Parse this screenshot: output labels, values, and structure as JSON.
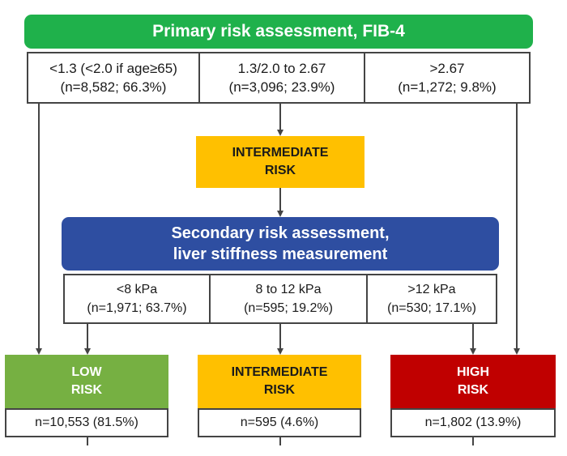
{
  "primary": {
    "title": "Primary risk assessment, FIB-4",
    "cells": [
      {
        "range": "<1.3 (<2.0 if age≥65)",
        "count": "(n=8,582; 66.3%)"
      },
      {
        "range": "1.3/2.0 to 2.67",
        "count": "(n=3,096; 23.9%)"
      },
      {
        "range": ">2.67",
        "count": "(n=1,272; 9.8%)"
      }
    ]
  },
  "intermediate_mid": {
    "line1": "INTERMEDIATE",
    "line2": "RISK"
  },
  "secondary": {
    "line1": "Secondary risk assessment,",
    "line2": "liver stiffness measurement",
    "cells": [
      {
        "range": "<8 kPa",
        "count": "(n=1,971; 63.7%)"
      },
      {
        "range": "8 to 12 kPa",
        "count": "(n=595; 19.2%)"
      },
      {
        "range": ">12 kPa",
        "count": "(n=530; 17.1%)"
      }
    ]
  },
  "results": {
    "low": {
      "line1": "LOW",
      "line2": "RISK",
      "count": "n=10,553 (81.5%)",
      "color": "#76b042"
    },
    "intermediate": {
      "line1": "INTERMEDIATE",
      "line2": "RISK",
      "count": "n=595 (4.6%)",
      "color": "#ffc000"
    },
    "high": {
      "line1": "HIGH",
      "line2": "RISK",
      "count": "n=1,802 (13.9%)",
      "color": "#c00000"
    }
  },
  "colors": {
    "primary_header": "#1fb14b",
    "secondary_header": "#2e4ea1",
    "arrow": "#444444"
  }
}
